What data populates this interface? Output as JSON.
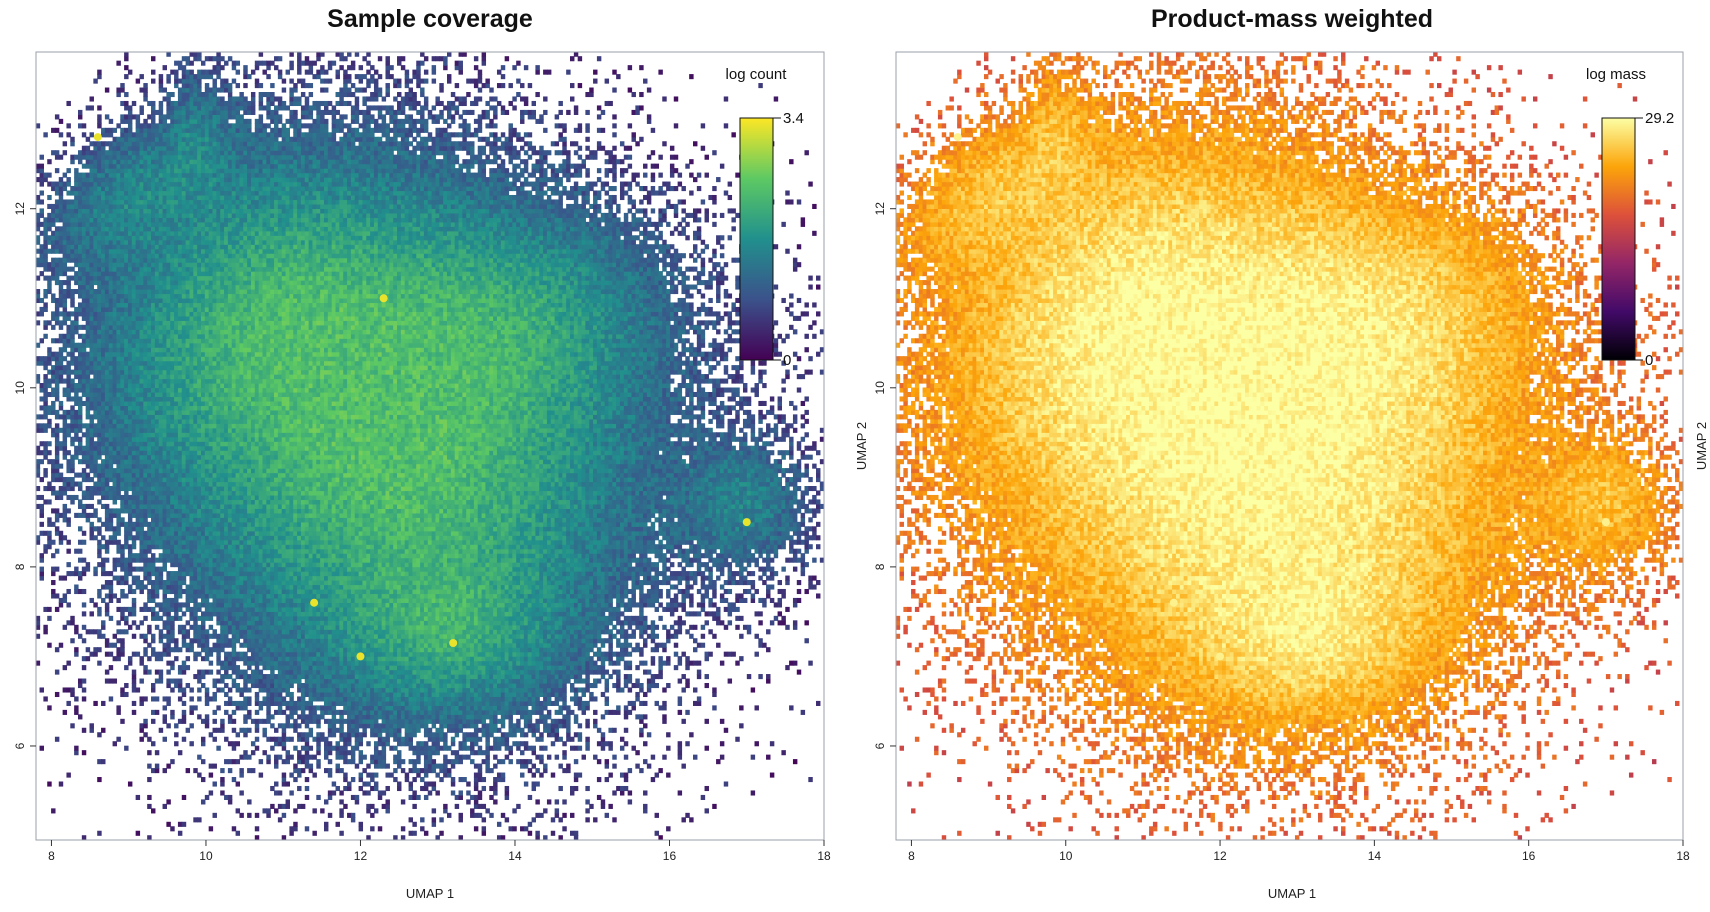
{
  "chart_data": [
    {
      "type": "heatmap",
      "title": "Sample coverage",
      "xlabel": "UMAP 1",
      "ylabel": "",
      "xlim": [
        7.8,
        18.0
      ],
      "ylim": [
        4.95,
        13.75
      ],
      "x_ticks": [
        8,
        10,
        12,
        14,
        16,
        18
      ],
      "y_ticks": [
        6,
        8,
        10,
        12
      ],
      "legend": {
        "title": "log count",
        "min_label": "0",
        "max_label": "3.4",
        "min": 0,
        "max": 3.4,
        "position": "top-right"
      },
      "colormap": "viridis",
      "colormap_stops": [
        "#440154",
        "#3b528b",
        "#21908d",
        "#5dc963",
        "#fde725"
      ],
      "grid": false
    },
    {
      "type": "heatmap",
      "title": "Product-mass weighted",
      "xlabel": "UMAP 1",
      "ylabel": "UMAP 2",
      "xlim": [
        7.8,
        18.0
      ],
      "ylim": [
        4.95,
        13.75
      ],
      "x_ticks": [
        8,
        10,
        12,
        14,
        16,
        18
      ],
      "y_ticks": [
        6,
        8,
        10,
        12
      ],
      "legend": {
        "title": "log mass",
        "min_label": "0",
        "max_label": "29.2",
        "min": 0,
        "max": 29.2,
        "position": "top-right"
      },
      "colormap": "inferno",
      "colormap_stops": [
        "#000004",
        "#420a68",
        "#932667",
        "#dd513a",
        "#fca50a",
        "#fcffa4"
      ],
      "grid": false
    }
  ],
  "right_edge_label": "UMAP 2"
}
